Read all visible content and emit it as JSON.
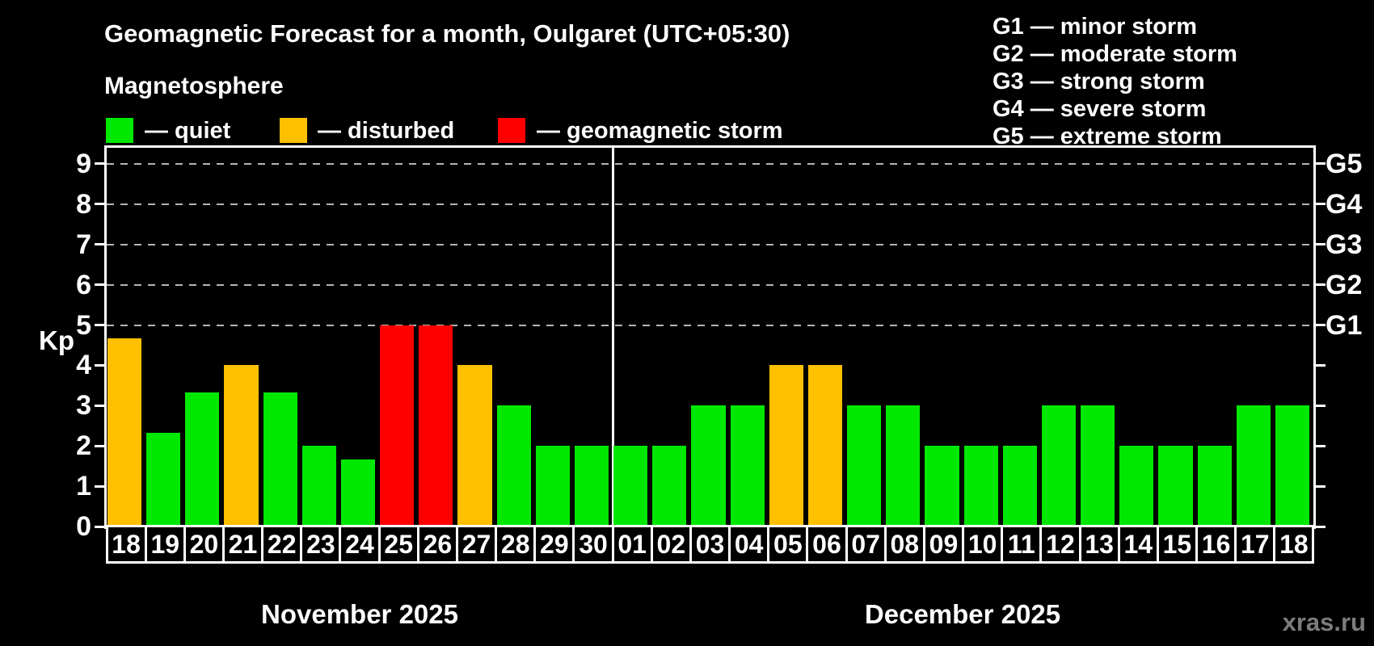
{
  "title": "Geomagnetic Forecast for a month, Oulgaret (UTC+05:30)",
  "subtitle": "Magnetosphere",
  "legend": {
    "quiet": "— quiet",
    "disturbed": "— disturbed",
    "storm": "— geomagnetic storm"
  },
  "g_legend": [
    "G1 — minor storm",
    "G2 — moderate storm",
    "G3 — strong storm",
    "G4 — severe storm",
    "G5 — extreme storm"
  ],
  "watermark": "xras.ru",
  "colors": {
    "quiet": "#00e800",
    "disturbed": "#ffc000",
    "storm": "#ff0000",
    "axis": "#ffffff",
    "grid": "#b4b4b4",
    "background": "#000000",
    "text": "#ffffff",
    "watermark": "#7c7c7c"
  },
  "chart_data": {
    "type": "bar",
    "title": "Geomagnetic Forecast for a month, Oulgaret (UTC+05:30)",
    "xlabel": "",
    "ylabel": "Kp",
    "ylim": [
      0,
      9.4
    ],
    "yticks": [
      0,
      1,
      2,
      3,
      4,
      5,
      6,
      7,
      8,
      9
    ],
    "gridlines_at": [
      5,
      6,
      7,
      8,
      9
    ],
    "grid_style": "dashed horizontal, only at storm levels Kp 5-9",
    "legend_position": "top-left",
    "right_axis": [
      {
        "label": "G1",
        "kp": 5
      },
      {
        "label": "G2",
        "kp": 6
      },
      {
        "label": "G3",
        "kp": 7
      },
      {
        "label": "G4",
        "kp": 8
      },
      {
        "label": "G5",
        "kp": 9
      }
    ],
    "months": [
      {
        "label": "November 2025",
        "count": 13
      },
      {
        "label": "December 2025",
        "count": 18
      }
    ],
    "bars": [
      {
        "month": "November 2025",
        "date": "18",
        "kp": 4.67,
        "level": "disturbed"
      },
      {
        "month": "November 2025",
        "date": "19",
        "kp": 2.33,
        "level": "quiet"
      },
      {
        "month": "November 2025",
        "date": "20",
        "kp": 3.33,
        "level": "quiet"
      },
      {
        "month": "November 2025",
        "date": "21",
        "kp": 4,
        "level": "disturbed"
      },
      {
        "month": "November 2025",
        "date": "22",
        "kp": 3.33,
        "level": "quiet"
      },
      {
        "month": "November 2025",
        "date": "23",
        "kp": 2,
        "level": "quiet"
      },
      {
        "month": "November 2025",
        "date": "24",
        "kp": 1.67,
        "level": "quiet"
      },
      {
        "month": "November 2025",
        "date": "25",
        "kp": 5,
        "level": "storm"
      },
      {
        "month": "November 2025",
        "date": "26",
        "kp": 5,
        "level": "storm"
      },
      {
        "month": "November 2025",
        "date": "27",
        "kp": 4,
        "level": "disturbed"
      },
      {
        "month": "November 2025",
        "date": "28",
        "kp": 3,
        "level": "quiet"
      },
      {
        "month": "November 2025",
        "date": "29",
        "kp": 2,
        "level": "quiet"
      },
      {
        "month": "November 2025",
        "date": "30",
        "kp": 2,
        "level": "quiet"
      },
      {
        "month": "December 2025",
        "date": "01",
        "kp": 2,
        "level": "quiet"
      },
      {
        "month": "December 2025",
        "date": "02",
        "kp": 2,
        "level": "quiet"
      },
      {
        "month": "December 2025",
        "date": "03",
        "kp": 3,
        "level": "quiet"
      },
      {
        "month": "December 2025",
        "date": "04",
        "kp": 3,
        "level": "quiet"
      },
      {
        "month": "December 2025",
        "date": "05",
        "kp": 4,
        "level": "disturbed"
      },
      {
        "month": "December 2025",
        "date": "06",
        "kp": 4,
        "level": "disturbed"
      },
      {
        "month": "December 2025",
        "date": "07",
        "kp": 3,
        "level": "quiet"
      },
      {
        "month": "December 2025",
        "date": "08",
        "kp": 3,
        "level": "quiet"
      },
      {
        "month": "December 2025",
        "date": "09",
        "kp": 2,
        "level": "quiet"
      },
      {
        "month": "December 2025",
        "date": "10",
        "kp": 2,
        "level": "quiet"
      },
      {
        "month": "December 2025",
        "date": "11",
        "kp": 2,
        "level": "quiet"
      },
      {
        "month": "December 2025",
        "date": "12",
        "kp": 3,
        "level": "quiet"
      },
      {
        "month": "December 2025",
        "date": "13",
        "kp": 3,
        "level": "quiet"
      },
      {
        "month": "December 2025",
        "date": "14",
        "kp": 2,
        "level": "quiet"
      },
      {
        "month": "December 2025",
        "date": "15",
        "kp": 2,
        "level": "quiet"
      },
      {
        "month": "December 2025",
        "date": "16",
        "kp": 2,
        "level": "quiet"
      },
      {
        "month": "December 2025",
        "date": "17",
        "kp": 3,
        "level": "quiet"
      },
      {
        "month": "December 2025",
        "date": "18",
        "kp": 3,
        "level": "quiet"
      }
    ]
  }
}
